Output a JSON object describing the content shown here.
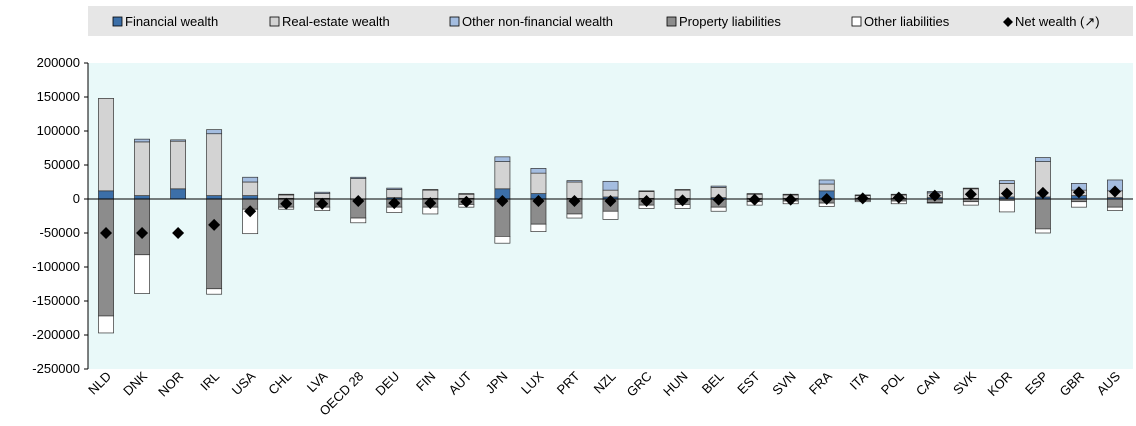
{
  "chart_data": {
    "type": "stacked-bar",
    "categories": [
      "NLD",
      "DNK",
      "NOR",
      "IRL",
      "USA",
      "CHL",
      "LVA",
      "OECD 28",
      "DEU",
      "FIN",
      "AUT",
      "JPN",
      "LUX",
      "PRT",
      "NZL",
      "GRC",
      "HUN",
      "BEL",
      "EST",
      "SVN",
      "FRA",
      "ITA",
      "POL",
      "CAN",
      "SVK",
      "KOR",
      "ESP",
      "GBR",
      "AUS"
    ],
    "series": [
      {
        "name": "Financial wealth",
        "color": "#3c6fa8",
        "kind": "bar",
        "values": [
          12000,
          5000,
          15000,
          5000,
          5000,
          1000,
          1000,
          0,
          2000,
          1000,
          1000,
          15000,
          8000,
          1000,
          3000,
          1000,
          1000,
          2000,
          1000,
          1000,
          12000,
          1000,
          1000,
          2000,
          1000,
          3000,
          3000,
          5000,
          2000
        ]
      },
      {
        "name": "Real-estate wealth",
        "color": "#d3d3d3",
        "kind": "bar",
        "values": [
          136000,
          79000,
          70000,
          91000,
          20000,
          5000,
          7000,
          30000,
          12000,
          12000,
          6000,
          40000,
          30000,
          24000,
          10000,
          10000,
          12000,
          15000,
          6000,
          5000,
          10000,
          4000,
          5000,
          7000,
          14000,
          20000,
          52000,
          8000,
          10000
        ]
      },
      {
        "name": "Other non-financial wealth",
        "color": "#a4bde0",
        "kind": "bar",
        "values": [
          0,
          4000,
          2000,
          6000,
          7000,
          1000,
          2000,
          2000,
          2000,
          1000,
          1000,
          7000,
          7000,
          2000,
          13000,
          1000,
          1000,
          2000,
          1000,
          1000,
          6000,
          1000,
          1000,
          2000,
          1000,
          4000,
          6000,
          10000,
          16000
        ]
      },
      {
        "name": "Property liabilities",
        "color": "#8c8c8c",
        "kind": "bar",
        "values": [
          -172000,
          -82000,
          0,
          -132000,
          -15000,
          -12000,
          -12000,
          -28000,
          -12000,
          -12000,
          -8000,
          -55000,
          -37000,
          -22000,
          -18000,
          -9000,
          -8000,
          -12000,
          -4000,
          -3000,
          -6000,
          -2000,
          -3000,
          -5000,
          -4000,
          -2000,
          -44000,
          -4000,
          -12000
        ]
      },
      {
        "name": "Other liabilities",
        "color": "#ffffff",
        "kind": "bar",
        "values": [
          -25000,
          -57000,
          0,
          -8000,
          -36000,
          -3000,
          -5000,
          -7000,
          -8000,
          -10000,
          -4000,
          -10000,
          -11000,
          -6000,
          -12000,
          -5000,
          -6000,
          -6000,
          -5000,
          -4000,
          -5000,
          -2000,
          -4000,
          -1000,
          -5000,
          -17000,
          -6000,
          -8000,
          -5000
        ]
      },
      {
        "name": "Net wealth (↗)",
        "color": "#000000",
        "kind": "marker",
        "values": [
          -50000,
          -50000,
          -50000,
          -38000,
          -18000,
          -7000,
          -7000,
          -3000,
          -6000,
          -6000,
          -4000,
          -3000,
          -3000,
          -3000,
          -3000,
          -3000,
          -2000,
          -1000,
          -1000,
          -1000,
          0,
          1000,
          2000,
          5000,
          7000,
          8000,
          9000,
          10000,
          11000
        ]
      }
    ],
    "ylim": [
      -250000,
      200000
    ],
    "yticks": [
      -250000,
      -200000,
      -150000,
      -100000,
      -50000,
      0,
      50000,
      100000,
      150000,
      200000
    ]
  }
}
